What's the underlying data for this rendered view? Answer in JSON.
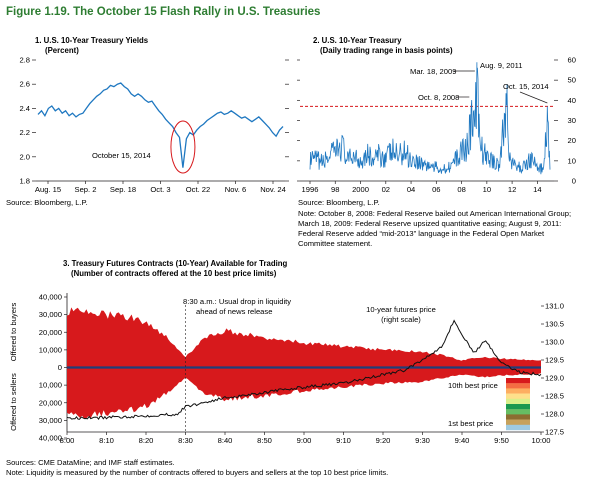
{
  "figure": {
    "title": "Figure 1.19. The October 15 Flash Rally in U.S. Treasuries"
  },
  "colors": {
    "title_green": "#2e7d32",
    "series_blue": "#1f78c1",
    "highlight_red": "#d7191c",
    "price_black": "#111111"
  },
  "panel1": {
    "title_line1": "1. U.S. 10-Year Treasury Yields",
    "title_line2": "(Percent)",
    "annotation": "October 15, 2014",
    "source": "Source: Bloomberg, L.P."
  },
  "panel2": {
    "title_line1": "2. U.S. 10-Year Treasury",
    "title_line2": "(Daily trading range in basis points)",
    "source": "Source: Bloomberg, L.P.",
    "note_lines": [
      "Note: October 8, 2008: Federal Reserve bailed out American International Group;",
      "March 18, 2009: Federal Reserve upsized quantitative easing; August 9, 2011:",
      "Federal Reserve added “mid-2013” language in the Federal Open Market",
      "Committee statement."
    ]
  },
  "panel3": {
    "title_line1": "3. Treasury Futures Contracts (10-Year) Available for Trading",
    "title_line2": "(Number of contracts offered at the 10 best price limits)",
    "ylabel_top": "Offered to buyers",
    "ylabel_bottom": "Offered to sellers",
    "annotation_drop_line1": "8:30 a.m.: Usual drop in liquidity",
    "annotation_drop_line2": "ahead of news release",
    "annotation_price_line1": "10-year futures price",
    "annotation_price_line2": "(right scale)",
    "legend_top": "10th best price",
    "legend_bottom": "1st best price",
    "sources": "Sources: CME DataMine; and IMF staff estimates.",
    "note": "Note: Liquidity is measured by the number of contracts offered to buyers and sellers at the top 10 best price limits."
  },
  "chart_data": [
    {
      "type": "line",
      "title": "1. U.S. 10-Year Treasury Yields",
      "ylabel": "Percent",
      "ylim": [
        1.8,
        2.8
      ],
      "yticks": [
        "1.8",
        "2.0",
        "2.2",
        "2.4",
        "2.6",
        "2.8"
      ],
      "xticks": [
        "Aug. 15",
        "Sep. 2",
        "Sep. 18",
        "Oct. 3",
        "Oct. 22",
        "Nov. 6",
        "Nov. 24"
      ],
      "annotation": "October 15, 2014",
      "series": [
        {
          "values": [
            2.35,
            2.38,
            2.34,
            2.4,
            2.42,
            2.38,
            2.4,
            2.36,
            2.38,
            2.34,
            2.36,
            2.33,
            2.35,
            2.36,
            2.4,
            2.44,
            2.47,
            2.5,
            2.52,
            2.55,
            2.56,
            2.59,
            2.58,
            2.6,
            2.61,
            2.58,
            2.56,
            2.52,
            2.5,
            2.52,
            2.5,
            2.47,
            2.45,
            2.46,
            2.42,
            2.38,
            2.35,
            2.31,
            2.28,
            2.25,
            2.2,
            2.16,
            1.91,
            2.15,
            2.2,
            2.18,
            2.22,
            2.25,
            2.27,
            2.3,
            2.32,
            2.34,
            2.36,
            2.37,
            2.35,
            2.36,
            2.38,
            2.36,
            2.34,
            2.32,
            2.33,
            2.31,
            2.29,
            2.31,
            2.33,
            2.3,
            2.27,
            2.24,
            2.2,
            2.17,
            2.22,
            2.25
          ]
        }
      ]
    },
    {
      "type": "line",
      "title": "2. U.S. 10-Year Treasury",
      "ylabel": "Daily trading range in basis points",
      "ylim": [
        0,
        60
      ],
      "yticks": [
        "0",
        "10",
        "20",
        "30",
        "40",
        "50",
        "60"
      ],
      "xticks": [
        "1996",
        "98",
        "2000",
        "02",
        "04",
        "06",
        "08",
        "10",
        "12",
        "14"
      ],
      "reference_line": 37,
      "annotations": [
        "Mar. 18, 2009",
        "Aug. 9, 2011",
        "Oct. 8, 2008",
        "Oct. 15, 2014"
      ],
      "series": [
        {
          "x": [
            1996,
            1996.5,
            1997,
            1997.5,
            1998,
            1998.5,
            1999,
            1999.5,
            2000,
            2000.5,
            2001,
            2001.5,
            2002,
            2002.5,
            2003,
            2003.5,
            2004,
            2004.5,
            2005,
            2005.5,
            2006,
            2006.5,
            2007,
            2007.5,
            2008,
            2008.5,
            2008.77,
            2009,
            2009.21,
            2009.5,
            2010,
            2010.5,
            2011,
            2011.6,
            2011.8,
            2012,
            2012.5,
            2013,
            2013.5,
            2014,
            2014.5,
            2014.79,
            2015
          ],
          "values": [
            12,
            13,
            11,
            15,
            17,
            22,
            12,
            16,
            12,
            17,
            12,
            16,
            14,
            18,
            15,
            18,
            13,
            12,
            10,
            9,
            8,
            7,
            9,
            12,
            18,
            22,
            37,
            30,
            55,
            20,
            14,
            12,
            10,
            48,
            15,
            10,
            8,
            9,
            14,
            8,
            7,
            37,
            6
          ]
        }
      ]
    },
    {
      "type": "area",
      "title": "3. Treasury Futures Contracts (10-Year) Available for Trading",
      "subtitle": "Number of contracts offered at the 10 best price limits",
      "ylim": [
        -40000,
        40000
      ],
      "yticks": [
        "40,000",
        "30,000",
        "20,000",
        "10,000",
        "0",
        "10,000",
        "20,000",
        "30,000",
        "40,000"
      ],
      "right_ylim": [
        127.5,
        131.0
      ],
      "right_yticks": [
        "127.5",
        "128.0",
        "128.5",
        "129.0",
        "129.5",
        "130.0",
        "130.5",
        "131.0"
      ],
      "xticks": [
        "8:00",
        "8:10",
        "8:20",
        "8:30",
        "8:40",
        "8:50",
        "9:00",
        "9:10",
        "9:20",
        "9:30",
        "9:40",
        "9:50",
        "10:00"
      ],
      "legend": [
        "10th best price",
        "1st best price"
      ],
      "level_colors": [
        "#d7191c",
        "#f46d43",
        "#fdae61",
        "#fee08b",
        "#d9ef8b",
        "#1a9850",
        "#66bd63",
        "#8c6d31",
        "#c6a15b",
        "#9ecae1"
      ],
      "series": [
        {
          "name": "Offered to buyers (total, top 10 levels)",
          "x": [
            "8:00",
            "8:05",
            "8:10",
            "8:15",
            "8:20",
            "8:25",
            "8:30",
            "8:35",
            "8:40",
            "8:45",
            "8:50",
            "8:55",
            "9:00",
            "9:05",
            "9:10",
            "9:15",
            "9:20",
            "9:25",
            "9:30",
            "9:35",
            "9:40",
            "9:45",
            "9:50",
            "9:55",
            "10:00"
          ],
          "values": [
            32000,
            31000,
            30000,
            29000,
            26000,
            18000,
            6000,
            17000,
            21000,
            19000,
            17000,
            16000,
            14000,
            13000,
            12000,
            11000,
            10000,
            9500,
            9000,
            7000,
            4000,
            6000,
            5000,
            4500,
            4000
          ]
        },
        {
          "name": "Offered to sellers (total, top 10 levels)",
          "x": [
            "8:00",
            "8:05",
            "8:10",
            "8:15",
            "8:20",
            "8:25",
            "8:30",
            "8:35",
            "8:40",
            "8:45",
            "8:50",
            "8:55",
            "9:00",
            "9:05",
            "9:10",
            "9:15",
            "9:20",
            "9:25",
            "9:30",
            "9:35",
            "9:40",
            "9:45",
            "9:50",
            "9:55",
            "10:00"
          ],
          "values": [
            -27000,
            -27000,
            -26000,
            -25000,
            -22000,
            -15000,
            -6000,
            -15000,
            -18000,
            -17000,
            -16000,
            -15000,
            -13000,
            -12000,
            -11000,
            -10000,
            -9000,
            -8500,
            -8000,
            -6000,
            -4000,
            -5500,
            -4500,
            -4000,
            -3500
          ]
        },
        {
          "name": "10-year futures price",
          "axis": "right",
          "x": [
            "8:00",
            "8:10",
            "8:20",
            "8:28",
            "8:30",
            "8:40",
            "8:50",
            "9:00",
            "9:10",
            "9:20",
            "9:25",
            "9:30",
            "9:35",
            "9:38",
            "9:40",
            "9:43",
            "9:46",
            "9:50",
            "9:55",
            "10:00"
          ],
          "values": [
            127.88,
            127.9,
            127.95,
            128.0,
            128.2,
            128.45,
            128.6,
            128.75,
            128.85,
            129.1,
            129.2,
            129.5,
            129.9,
            130.6,
            130.2,
            129.7,
            130.05,
            129.4,
            129.15,
            129.1
          ]
        }
      ]
    }
  ]
}
